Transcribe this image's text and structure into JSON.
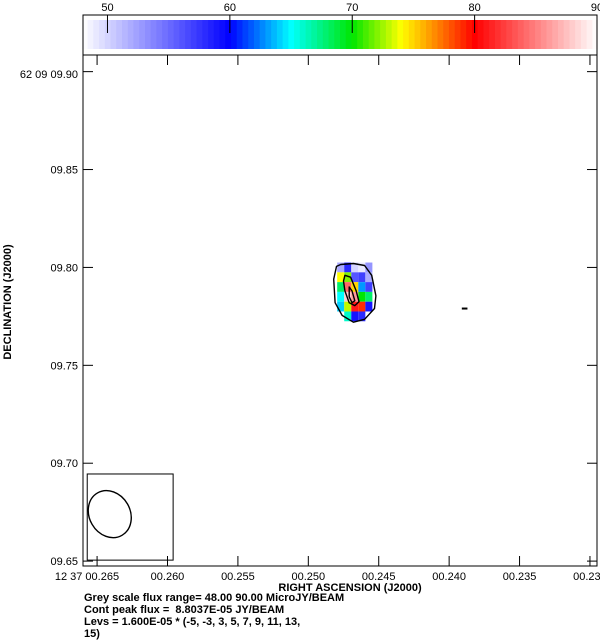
{
  "chart_data": {
    "type": "heatmap",
    "colorbar": {
      "range": [
        48,
        90
      ],
      "ticks": [
        50,
        60,
        70,
        80,
        90
      ],
      "tick_labels": [
        "50",
        "60",
        "70",
        "80",
        "90"
      ]
    },
    "x_axis": {
      "label": "RIGHT ASCENSION (J2000)",
      "range": [
        0.266,
        0.2295
      ],
      "ticks": [
        0.265,
        0.26,
        0.255,
        0.25,
        0.245,
        0.24,
        0.235,
        0.23
      ],
      "tick_labels": [
        "12 37 00.265",
        "00.260",
        "00.255",
        "00.250",
        "00.245",
        "00.240",
        "00.235",
        "00.230"
      ]
    },
    "y_axis": {
      "label": "DECLINATION (J2000)",
      "range": [
        9.6475,
        9.9085
      ],
      "ticks": [
        9.65,
        9.7,
        9.75,
        9.8,
        9.85,
        9.9
      ],
      "tick_labels": [
        "09.65",
        "09.70",
        "09.75",
        "09.80",
        "09.85",
        "09.90"
      ],
      "top_label": "62 09 09.90"
    },
    "pixels": [
      {
        "x": 0.2477,
        "y": 9.8,
        "v": 52
      },
      {
        "x": 0.2472,
        "y": 9.8,
        "v": 58
      },
      {
        "x": 0.2467,
        "y": 9.8,
        "v": 50
      },
      {
        "x": 0.2462,
        "y": 9.8,
        "v": 49
      },
      {
        "x": 0.2457,
        "y": 9.8,
        "v": 53
      },
      {
        "x": 0.2477,
        "y": 9.795,
        "v": 74
      },
      {
        "x": 0.2472,
        "y": 9.795,
        "v": 72
      },
      {
        "x": 0.2467,
        "y": 9.795,
        "v": 56
      },
      {
        "x": 0.2462,
        "y": 9.795,
        "v": 57
      },
      {
        "x": 0.2457,
        "y": 9.795,
        "v": 52
      },
      {
        "x": 0.2477,
        "y": 9.79,
        "v": 68
      },
      {
        "x": 0.2472,
        "y": 9.79,
        "v": 84
      },
      {
        "x": 0.2467,
        "y": 9.79,
        "v": 75
      },
      {
        "x": 0.2462,
        "y": 9.79,
        "v": 63
      },
      {
        "x": 0.2457,
        "y": 9.79,
        "v": 57
      },
      {
        "x": 0.2477,
        "y": 9.785,
        "v": 65
      },
      {
        "x": 0.2472,
        "y": 9.785,
        "v": 88
      },
      {
        "x": 0.2467,
        "y": 9.785,
        "v": 86
      },
      {
        "x": 0.2462,
        "y": 9.785,
        "v": 70
      },
      {
        "x": 0.2457,
        "y": 9.785,
        "v": 68
      },
      {
        "x": 0.2477,
        "y": 9.78,
        "v": 64
      },
      {
        "x": 0.2472,
        "y": 9.78,
        "v": 73
      },
      {
        "x": 0.2467,
        "y": 9.78,
        "v": 81
      },
      {
        "x": 0.2462,
        "y": 9.78,
        "v": 79
      },
      {
        "x": 0.2457,
        "y": 9.78,
        "v": 59
      },
      {
        "x": 0.2472,
        "y": 9.775,
        "v": 66
      },
      {
        "x": 0.2467,
        "y": 9.775,
        "v": 59
      },
      {
        "x": 0.2462,
        "y": 9.775,
        "v": 58
      }
    ],
    "contours": [
      {
        "level": 3,
        "points": [
          [
            0.2477,
            9.8015
          ],
          [
            0.2468,
            9.802
          ],
          [
            0.246,
            9.801
          ],
          [
            0.2455,
            9.796
          ],
          [
            0.2452,
            9.7855
          ],
          [
            0.2453,
            9.779
          ],
          [
            0.246,
            9.7735
          ],
          [
            0.2468,
            9.772
          ],
          [
            0.2476,
            9.7755
          ],
          [
            0.2481,
            9.782
          ],
          [
            0.2482,
            9.794
          ],
          [
            0.248,
            9.8005
          ]
        ]
      },
      {
        "level": 5,
        "points": [
          [
            0.2474,
            9.796
          ],
          [
            0.247,
            9.795
          ],
          [
            0.2466,
            9.788
          ],
          [
            0.2464,
            9.7825
          ],
          [
            0.2467,
            9.7805
          ],
          [
            0.2471,
            9.782
          ],
          [
            0.2474,
            9.788
          ],
          [
            0.2475,
            9.793
          ]
        ]
      },
      {
        "level": 7,
        "points": [
          [
            0.2471,
            9.79
          ],
          [
            0.2469,
            9.788
          ],
          [
            0.2467,
            9.783
          ],
          [
            0.2469,
            9.782
          ],
          [
            0.2471,
            9.785
          ]
        ]
      }
    ],
    "negative_contour": {
      "x": [
        0.2391,
        0.2387
      ],
      "y": 9.779
    },
    "beam": {
      "x": 0.2641,
      "y": 9.674,
      "major": 0.025,
      "minor": 0.0029,
      "box": {
        "x": [
          0.2657,
          0.2596
        ],
        "y": [
          9.6505,
          9.6945
        ]
      }
    },
    "notes": [
      "Grey scale flux range= 48.00 90.00 MicroJY/BEAM",
      "Cont peak flux =  8.8037E-05 JY/BEAM",
      "Levs = 1.600E-05 * (-5, -3, 3, 5, 7, 9, 11, 13,",
      "15)"
    ]
  }
}
